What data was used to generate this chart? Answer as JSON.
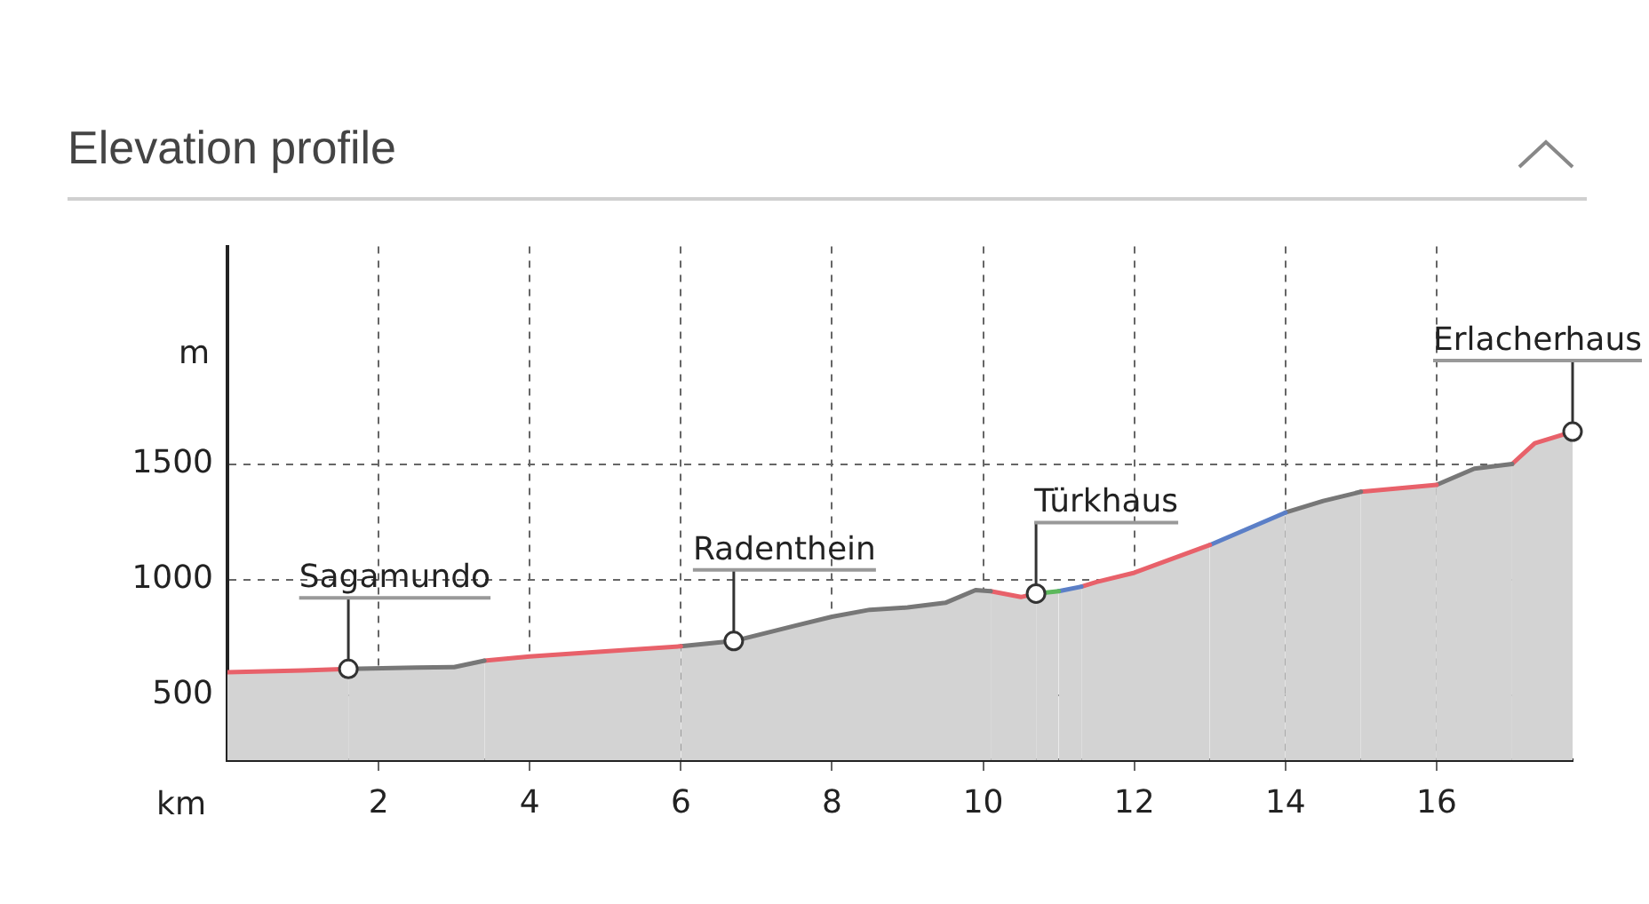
{
  "chart_data": {
    "type": "area",
    "title": "Elevation profile",
    "xlabel": "km",
    "ylabel": "m",
    "series": [
      {
        "color": "#e8616a",
        "x": [
          0,
          1,
          1.6
        ],
        "values": [
          600,
          608,
          614
        ]
      },
      {
        "color": "#777777",
        "x": [
          1.6,
          2.5,
          3.0,
          3.4
        ],
        "values": [
          614,
          620,
          622,
          650
        ]
      },
      {
        "color": "#e8616a",
        "x": [
          3.4,
          4,
          5,
          6
        ],
        "values": [
          650,
          668,
          690,
          712
        ]
      },
      {
        "color": "#777777",
        "x": [
          6,
          6.7,
          7.5,
          8,
          8.5,
          9,
          9.5,
          9.9,
          10.1
        ],
        "values": [
          712,
          735,
          800,
          840,
          870,
          880,
          900,
          955,
          950
        ]
      },
      {
        "color": "#e8616a",
        "x": [
          10.1,
          10.5,
          10.7
        ],
        "values": [
          950,
          925,
          940
        ]
      },
      {
        "color": "#5cb85c",
        "x": [
          10.7,
          11
        ],
        "values": [
          940,
          950
        ]
      },
      {
        "color": "#5b7fc7",
        "x": [
          11,
          11.3
        ],
        "values": [
          950,
          970
        ]
      },
      {
        "color": "#e8616a",
        "x": [
          11.3,
          11.5,
          12,
          13
        ],
        "values": [
          970,
          990,
          1030,
          1150
        ]
      },
      {
        "color": "#5b7fc7",
        "x": [
          13,
          13.5,
          14
        ],
        "values": [
          1150,
          1220,
          1290
        ]
      },
      {
        "color": "#777777",
        "x": [
          14,
          14.5,
          15
        ],
        "values": [
          1290,
          1340,
          1380
        ]
      },
      {
        "color": "#e8616a",
        "x": [
          15,
          16
        ],
        "values": [
          1380,
          1410
        ]
      },
      {
        "color": "#777777",
        "x": [
          16,
          16.5,
          17
        ],
        "values": [
          1410,
          1480,
          1500
        ]
      },
      {
        "color": "#e8616a",
        "x": [
          17,
          17.3,
          17.8
        ],
        "values": [
          1500,
          1590,
          1640
        ]
      }
    ],
    "annotations": [
      {
        "text": "Sagamundo",
        "x": 1.6,
        "y": 614
      },
      {
        "text": "Radenthein",
        "x": 6.7,
        "y": 735
      },
      {
        "text": "Türkhaus",
        "x": 10.7,
        "y": 940
      },
      {
        "text": "Erlacherhaus",
        "x": 17.8,
        "y": 1640
      }
    ],
    "xlim": [
      0,
      17.8
    ],
    "xticks": [
      2,
      4,
      6,
      8,
      10,
      12,
      14,
      16
    ],
    "ylim": [
      220,
      2440
    ],
    "yticks": [
      500,
      1000,
      1500
    ],
    "grid": true,
    "legend": false
  }
}
